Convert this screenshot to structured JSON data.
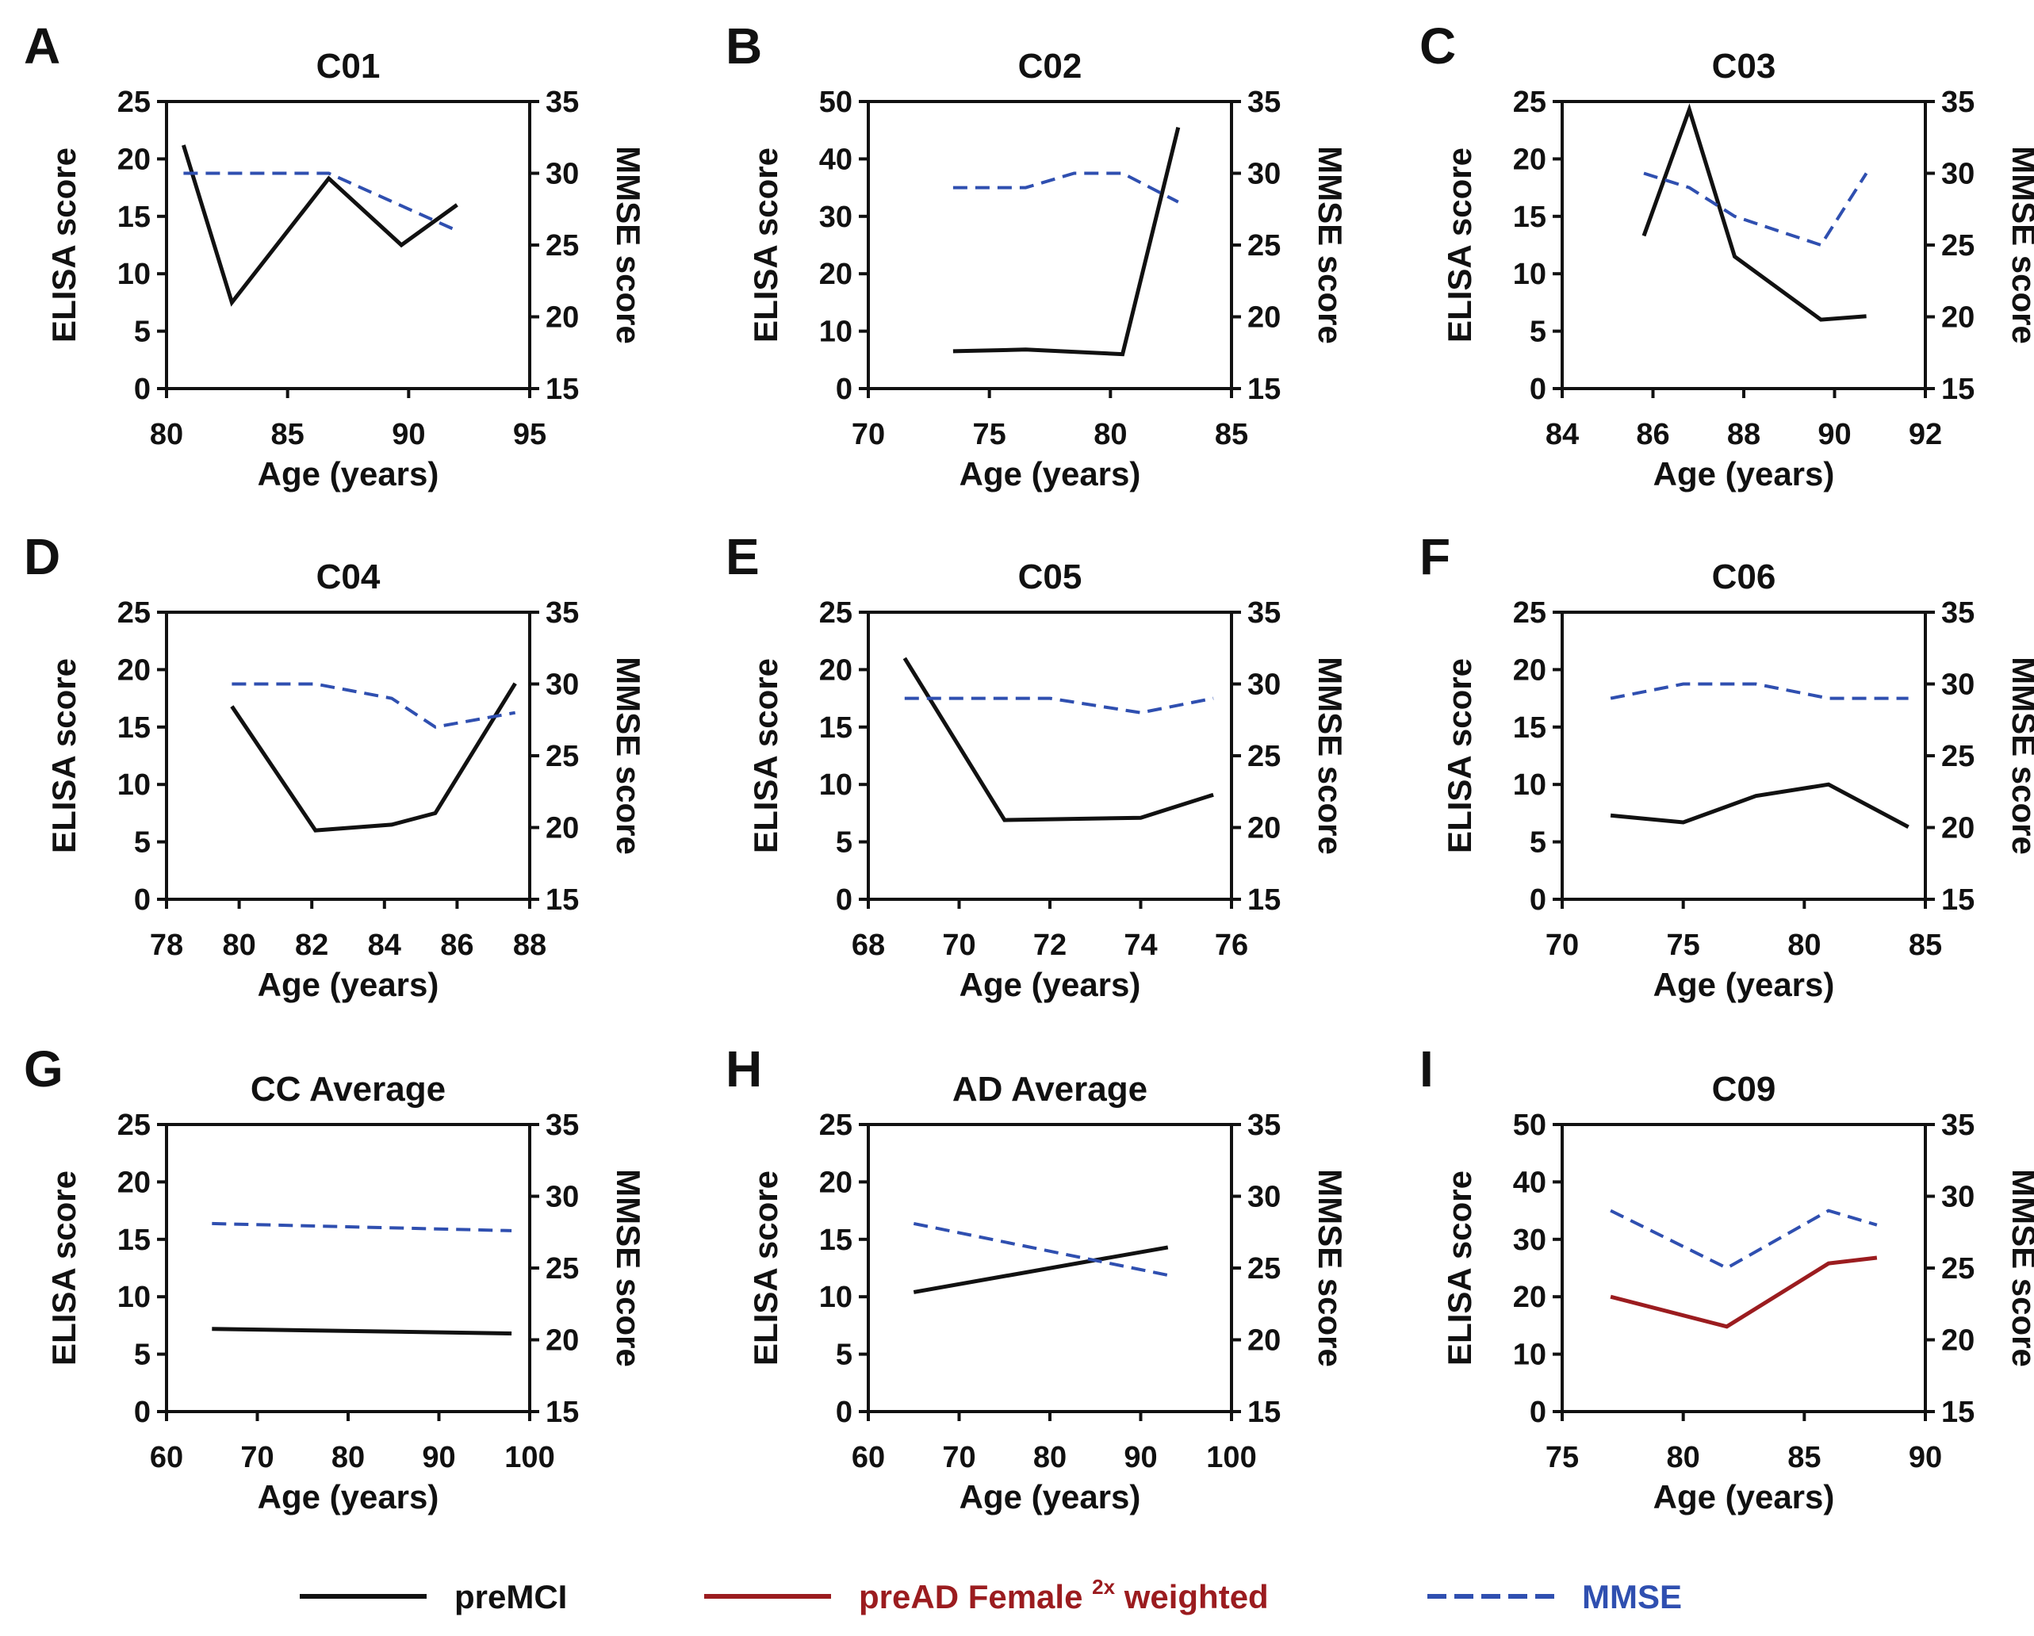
{
  "colors": {
    "preMCI": "#111111",
    "preAD": "#9b1c1f",
    "MMSE": "#2f4fb0",
    "legend_mmse_text": "#2f4fb0",
    "legend_preAD_text": "#9b1c1f",
    "axis": "#111111"
  },
  "legend": {
    "items": [
      {
        "key": "preMCI",
        "label_parts": [
          "preMCI"
        ],
        "style": "solid",
        "color": "#111111"
      },
      {
        "key": "preAD",
        "label_parts": [
          "preAD Female ",
          "2x",
          " weighted"
        ],
        "style": "solid",
        "color": "#9b1c1f"
      },
      {
        "key": "MMSE",
        "label_parts": [
          "MMSE"
        ],
        "style": "dashed",
        "color": "#2f4fb0"
      }
    ]
  },
  "chart_data": [
    {
      "type": "line",
      "letter": "A",
      "title": "C01",
      "xlabel": "Age (years)",
      "ylabel": "ELISA score",
      "y2label": "MMSE score",
      "xlim": [
        80,
        95
      ],
      "xticks": [
        80,
        85,
        90,
        95
      ],
      "ylim": [
        0,
        25
      ],
      "yticks": [
        0,
        5,
        10,
        15,
        20,
        25
      ],
      "y2lim": [
        15,
        35
      ],
      "y2ticks": [
        15,
        20,
        25,
        30,
        35
      ],
      "series": [
        {
          "name": "preMCI",
          "axis": "left",
          "style": "solid",
          "color": "#111111",
          "x": [
            80.7,
            82.7,
            86.7,
            89.7,
            92.0
          ],
          "y": [
            21.2,
            7.5,
            18.3,
            12.5,
            16.0
          ]
        },
        {
          "name": "MMSE",
          "axis": "right",
          "style": "dashed",
          "color": "#2f4fb0",
          "x": [
            80.7,
            86.7,
            92.0
          ],
          "y": [
            30,
            30,
            26
          ]
        }
      ]
    },
    {
      "type": "line",
      "letter": "B",
      "title": "C02",
      "xlabel": "Age (years)",
      "ylabel": "ELISA score",
      "y2label": "MMSE score",
      "xlim": [
        70,
        85
      ],
      "xticks": [
        70,
        75,
        80,
        85
      ],
      "ylim": [
        0,
        50
      ],
      "yticks": [
        0,
        10,
        20,
        30,
        40,
        50
      ],
      "y2lim": [
        15,
        35
      ],
      "y2ticks": [
        15,
        20,
        25,
        30,
        35
      ],
      "series": [
        {
          "name": "preMCI",
          "axis": "left",
          "style": "solid",
          "color": "#111111",
          "x": [
            73.5,
            76.5,
            80.5,
            82.8
          ],
          "y": [
            6.5,
            6.8,
            6.0,
            45.5
          ]
        },
        {
          "name": "MMSE",
          "axis": "right",
          "style": "dashed",
          "color": "#2f4fb0",
          "x": [
            73.5,
            76.5,
            78.5,
            80.5,
            82.8
          ],
          "y": [
            29,
            29,
            30,
            30,
            28
          ]
        }
      ]
    },
    {
      "type": "line",
      "letter": "C",
      "title": "C03",
      "xlabel": "Age (years)",
      "ylabel": "ELISA score",
      "y2label": "MMSE score",
      "xlim": [
        84,
        92
      ],
      "xticks": [
        84,
        86,
        88,
        90,
        92
      ],
      "ylim": [
        0,
        25
      ],
      "yticks": [
        0,
        5,
        10,
        15,
        20,
        25
      ],
      "y2lim": [
        15,
        35
      ],
      "y2ticks": [
        15,
        20,
        25,
        30,
        35
      ],
      "series": [
        {
          "name": "preMCI",
          "axis": "left",
          "style": "solid",
          "color": "#111111",
          "x": [
            85.8,
            86.8,
            87.8,
            89.7,
            90.7
          ],
          "y": [
            13.3,
            24.3,
            11.5,
            6.0,
            6.3
          ]
        },
        {
          "name": "MMSE",
          "axis": "right",
          "style": "dashed",
          "color": "#2f4fb0",
          "x": [
            85.8,
            86.8,
            87.8,
            89.7,
            90.7
          ],
          "y": [
            30,
            29,
            27,
            25,
            30
          ]
        }
      ]
    },
    {
      "type": "line",
      "letter": "D",
      "title": "C04",
      "xlabel": "Age (years)",
      "ylabel": "ELISA score",
      "y2label": "MMSE score",
      "xlim": [
        78,
        88
      ],
      "xticks": [
        78,
        80,
        82,
        84,
        86,
        88
      ],
      "ylim": [
        0,
        25
      ],
      "yticks": [
        0,
        5,
        10,
        15,
        20,
        25
      ],
      "y2lim": [
        15,
        35
      ],
      "y2ticks": [
        15,
        20,
        25,
        30,
        35
      ],
      "series": [
        {
          "name": "preMCI",
          "axis": "left",
          "style": "solid",
          "color": "#111111",
          "x": [
            79.8,
            82.1,
            84.2,
            85.4,
            87.6
          ],
          "y": [
            16.8,
            6.0,
            6.5,
            7.5,
            18.8
          ]
        },
        {
          "name": "MMSE",
          "axis": "right",
          "style": "dashed",
          "color": "#2f4fb0",
          "x": [
            79.8,
            82.1,
            84.2,
            85.4,
            87.6
          ],
          "y": [
            30,
            30,
            29,
            27,
            28
          ]
        }
      ]
    },
    {
      "type": "line",
      "letter": "E",
      "title": "C05",
      "xlabel": "Age (years)",
      "ylabel": "ELISA score",
      "y2label": "MMSE score",
      "xlim": [
        68,
        76
      ],
      "xticks": [
        68,
        70,
        72,
        74,
        76
      ],
      "ylim": [
        0,
        25
      ],
      "yticks": [
        0,
        5,
        10,
        15,
        20,
        25
      ],
      "y2lim": [
        15,
        35
      ],
      "y2ticks": [
        15,
        20,
        25,
        30,
        35
      ],
      "series": [
        {
          "name": "preMCI",
          "axis": "left",
          "style": "solid",
          "color": "#111111",
          "x": [
            68.8,
            71.0,
            74.0,
            75.6
          ],
          "y": [
            21.0,
            6.9,
            7.1,
            9.1
          ]
        },
        {
          "name": "MMSE",
          "axis": "right",
          "style": "dashed",
          "color": "#2f4fb0",
          "x": [
            68.8,
            71.0,
            72.0,
            74.0,
            75.6
          ],
          "y": [
            29,
            29,
            29,
            28,
            29
          ]
        }
      ]
    },
    {
      "type": "line",
      "letter": "F",
      "title": "C06",
      "xlabel": "Age (years)",
      "ylabel": "ELISA score",
      "y2label": "MMSE score",
      "xlim": [
        70,
        85
      ],
      "xticks": [
        70,
        75,
        80,
        85
      ],
      "ylim": [
        0,
        25
      ],
      "yticks": [
        0,
        5,
        10,
        15,
        20,
        25
      ],
      "y2lim": [
        15,
        35
      ],
      "y2ticks": [
        15,
        20,
        25,
        30,
        35
      ],
      "series": [
        {
          "name": "preMCI",
          "axis": "left",
          "style": "solid",
          "color": "#111111",
          "x": [
            72.0,
            75.0,
            78.0,
            81.0,
            84.3
          ],
          "y": [
            7.3,
            6.7,
            9.0,
            10.0,
            6.3
          ]
        },
        {
          "name": "MMSE",
          "axis": "right",
          "style": "dashed",
          "color": "#2f4fb0",
          "x": [
            72.0,
            75.0,
            78.0,
            81.0,
            84.3
          ],
          "y": [
            29,
            30,
            30,
            29,
            29
          ]
        }
      ]
    },
    {
      "type": "line",
      "letter": "G",
      "title": "CC Average",
      "xlabel": "Age (years)",
      "ylabel": "ELISA score",
      "y2label": "MMSE score",
      "xlim": [
        60,
        100
      ],
      "xticks": [
        60,
        70,
        80,
        90,
        100
      ],
      "ylim": [
        0,
        25
      ],
      "yticks": [
        0,
        5,
        10,
        15,
        20,
        25
      ],
      "y2lim": [
        15,
        35
      ],
      "y2ticks": [
        15,
        20,
        25,
        30,
        35
      ],
      "series": [
        {
          "name": "preMCI",
          "axis": "left",
          "style": "solid",
          "color": "#111111",
          "x": [
            65,
            98
          ],
          "y": [
            7.2,
            6.8
          ]
        },
        {
          "name": "MMSE",
          "axis": "right",
          "style": "dashed",
          "color": "#2f4fb0",
          "x": [
            65,
            98
          ],
          "y": [
            28.1,
            27.6
          ]
        }
      ]
    },
    {
      "type": "line",
      "letter": "H",
      "title": "AD Average",
      "xlabel": "Age (years)",
      "ylabel": "ELISA score",
      "y2label": "MMSE score",
      "xlim": [
        60,
        100
      ],
      "xticks": [
        60,
        70,
        80,
        90,
        100
      ],
      "ylim": [
        0,
        25
      ],
      "yticks": [
        0,
        5,
        10,
        15,
        20,
        25
      ],
      "y2lim": [
        15,
        35
      ],
      "y2ticks": [
        15,
        20,
        25,
        30,
        35
      ],
      "series": [
        {
          "name": "preMCI",
          "axis": "left",
          "style": "solid",
          "color": "#111111",
          "x": [
            65,
            93
          ],
          "y": [
            10.4,
            14.3
          ]
        },
        {
          "name": "MMSE",
          "axis": "right",
          "style": "dashed",
          "color": "#2f4fb0",
          "x": [
            65,
            93
          ],
          "y": [
            28.1,
            24.5
          ]
        }
      ]
    },
    {
      "type": "line",
      "letter": "I",
      "title": "C09",
      "xlabel": "Age (years)",
      "ylabel": "ELISA score",
      "y2label": "MMSE score",
      "xlim": [
        75,
        90
      ],
      "xticks": [
        75,
        80,
        85,
        90
      ],
      "ylim": [
        0,
        50
      ],
      "yticks": [
        0,
        10,
        20,
        30,
        40,
        50
      ],
      "y2lim": [
        15,
        35
      ],
      "y2ticks": [
        15,
        20,
        25,
        30,
        35
      ],
      "series": [
        {
          "name": "preAD Female 2x weighted",
          "axis": "left",
          "style": "solid",
          "color": "#9b1c1f",
          "x": [
            77.0,
            81.8,
            86.0,
            88.0
          ],
          "y": [
            20.0,
            14.8,
            25.8,
            26.8
          ]
        },
        {
          "name": "MMSE",
          "axis": "right",
          "style": "dashed",
          "color": "#2f4fb0",
          "x": [
            77.0,
            81.8,
            86.0,
            88.0
          ],
          "y": [
            29,
            25,
            29,
            28
          ]
        }
      ]
    }
  ]
}
